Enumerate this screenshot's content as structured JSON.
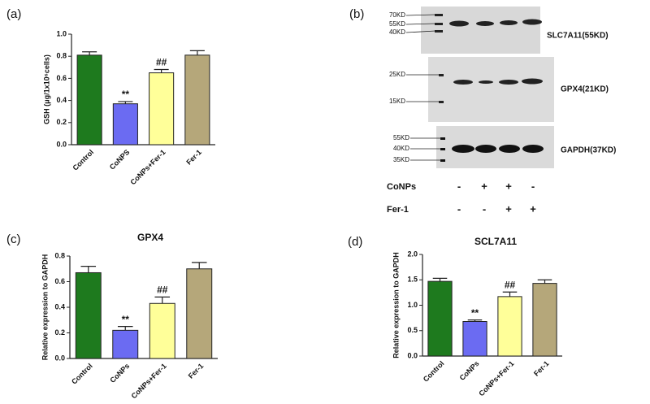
{
  "chart_data": [
    {
      "type": "bar",
      "panel": "(a)",
      "ylabel": "GSH (μg/1x10⁶cells)",
      "categories": [
        "Control",
        "CoNPS",
        "CoNPs+Fer-1",
        "Fer-1"
      ],
      "values": [
        0.81,
        0.37,
        0.65,
        0.81
      ],
      "errors": [
        0.03,
        0.02,
        0.03,
        0.04
      ],
      "annotations": [
        null,
        "**",
        "##",
        null
      ],
      "colors": [
        "#1e7a1e",
        "#6b6bf2",
        "#ffff99",
        "#b5a77a"
      ],
      "ylim": [
        0,
        1.0
      ],
      "yticks": [
        {
          "value": 0,
          "label": "0.0"
        },
        0.2,
        0.4,
        0.6,
        0.8,
        {
          "value": 1.0,
          "label": "1.0"
        }
      ]
    },
    {
      "type": "bar",
      "panel": "(c)",
      "title": "GPX4",
      "ylabel": "Relative expression to GAPDH",
      "categories": [
        "Control",
        "CoNPs",
        "CoNPs+Fer-1",
        "Fer-1"
      ],
      "values": [
        0.67,
        0.22,
        0.43,
        0.7
      ],
      "errors": [
        0.05,
        0.03,
        0.05,
        0.05
      ],
      "annotations": [
        null,
        "**",
        "##",
        null
      ],
      "colors": [
        "#1e7a1e",
        "#6b6bf2",
        "#ffff99",
        "#b5a77a"
      ],
      "ylim": [
        0,
        0.8
      ],
      "yticks": [
        {
          "value": 0,
          "label": "0.0"
        },
        0.2,
        0.4,
        0.6,
        0.8
      ]
    },
    {
      "type": "bar",
      "panel": "(d)",
      "title": "SCL7A11",
      "ylabel": "Relative expression to GAPDH",
      "categories": [
        "Control",
        "CoNPs",
        "CoNPs+Fer-1",
        "Fer-1"
      ],
      "values": [
        1.47,
        0.68,
        1.17,
        1.43
      ],
      "errors": [
        0.06,
        0.03,
        0.09,
        0.07
      ],
      "annotations": [
        null,
        "**",
        "##",
        null
      ],
      "colors": [
        "#1e7a1e",
        "#6b6bf2",
        "#ffff99",
        "#b5a77a"
      ],
      "ylim": [
        0,
        2.0
      ],
      "yticks": [
        {
          "value": 0,
          "label": "0.0"
        },
        0.5,
        {
          "value": 1.0,
          "label": "1.0"
        },
        1.5,
        {
          "value": 2.0,
          "label": "2.0"
        }
      ]
    }
  ],
  "blot": {
    "panel": "(b)",
    "blots": [
      {
        "markers": [
          "70KD",
          "55KD",
          "40KD"
        ],
        "label": "SLC7A11(55KD)"
      },
      {
        "markers": [
          "25KD",
          "15KD"
        ],
        "label": "GPX4(21KD)"
      },
      {
        "markers": [
          "55KD",
          "40KD",
          "35KD"
        ],
        "label": "GAPDH(37KD)"
      }
    ],
    "treatments": [
      {
        "name": "CoNPs",
        "signs": [
          "-",
          "+",
          "+",
          "-"
        ]
      },
      {
        "name": "Fer-1",
        "signs": [
          "-",
          "-",
          "+",
          "+"
        ]
      }
    ]
  }
}
